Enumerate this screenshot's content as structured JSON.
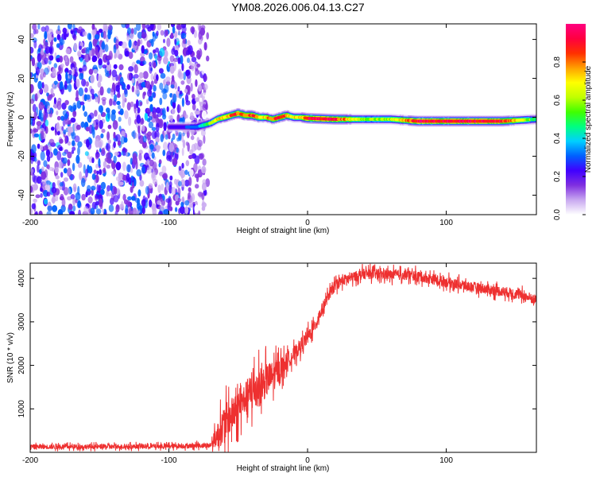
{
  "title": "YM08.2026.006.04.13.C27",
  "chart_data": [
    {
      "type": "heatmap",
      "title": "YM08.2026.006.04.13.C27",
      "xlabel": "Height of straight line (km)",
      "ylabel": "Frequency (Hz)",
      "xlim": [
        -200,
        165
      ],
      "ylim": [
        -50,
        48
      ],
      "xticks": [
        "-200",
        "-100",
        "0",
        "100"
      ],
      "xtick_values": [
        -200,
        -100,
        0,
        100
      ],
      "yticks": [
        "40",
        "20",
        "0",
        "-20",
        "-40"
      ],
      "ytick_values": [
        40,
        20,
        0,
        -20,
        -40
      ],
      "colorbar": {
        "label": "Normalized spectral amplitude",
        "range": [
          0,
          1
        ],
        "ticks": [
          "0.0",
          "0.2",
          "0.4",
          "0.6",
          "0.8"
        ],
        "tick_values": [
          0.0,
          0.2,
          0.4,
          0.6,
          0.8
        ],
        "colormap": [
          "#ffffff",
          "#c8a8f0",
          "#8030e0",
          "#4000ff",
          "#0060ff",
          "#00d0ff",
          "#00ff80",
          "#40ff00",
          "#c0ff00",
          "#ffff00",
          "#ffa000",
          "#ff3000",
          "#ff0040",
          "#ff0080"
        ]
      },
      "noise_region": {
        "x_range": [
          -200,
          -78
        ],
        "freq_range": [
          -50,
          48
        ],
        "amplitude_range": [
          0.05,
          0.35
        ]
      },
      "signal_ridge": {
        "x": [
          -100,
          -90,
          -80,
          -75,
          -70,
          -65,
          -60,
          -55,
          -50,
          -45,
          -40,
          -35,
          -30,
          -25,
          -20,
          -15,
          -10,
          -5,
          0,
          20,
          40,
          60,
          80,
          100,
          120,
          140,
          165
        ],
        "freq": [
          -5,
          -5,
          -5,
          -4,
          -3,
          -1,
          0,
          1,
          2,
          1,
          1,
          0,
          0,
          -1,
          0,
          1,
          0,
          0,
          -0.5,
          -1,
          -1,
          -1,
          -2,
          -2,
          -2,
          -2,
          -1
        ],
        "amplitude": [
          0.22,
          0.25,
          0.35,
          0.45,
          0.6,
          0.75,
          0.8,
          0.85,
          0.88,
          0.85,
          0.92,
          0.8,
          0.75,
          0.85,
          0.9,
          0.85,
          0.7,
          0.7,
          0.98,
          0.95,
          0.6,
          0.65,
          0.98,
          0.95,
          0.95,
          0.95,
          0.5
        ]
      }
    },
    {
      "type": "line",
      "xlabel": "Height of straight line (km)",
      "ylabel": "SNR (10 * v/v)",
      "xlim": [
        -200,
        165
      ],
      "ylim": [
        0,
        4350
      ],
      "xticks": [
        "-200",
        "-100",
        "0",
        "100"
      ],
      "xtick_values": [
        -200,
        -100,
        0,
        100
      ],
      "yticks": [
        "1000",
        "2000",
        "3000",
        "4000"
      ],
      "ytick_values": [
        1000,
        2000,
        3000,
        4000
      ],
      "color": "#ee3030",
      "series": [
        {
          "name": "SNR",
          "x": [
            -200,
            -150,
            -100,
            -70,
            -65,
            -60,
            -55,
            -50,
            -45,
            -40,
            -35,
            -30,
            -25,
            -20,
            -15,
            -10,
            -5,
            0,
            5,
            10,
            15,
            20,
            25,
            30,
            40,
            50,
            60,
            70,
            80,
            90,
            100,
            110,
            120,
            130,
            140,
            150,
            160,
            165
          ],
          "y": [
            130,
            130,
            140,
            160,
            400,
            650,
            850,
            1000,
            1250,
            1400,
            1500,
            1650,
            1750,
            1900,
            2100,
            2250,
            2450,
            2650,
            2900,
            3250,
            3600,
            3850,
            3950,
            4000,
            4100,
            4100,
            4080,
            4080,
            4050,
            3980,
            3920,
            3850,
            3800,
            3750,
            3700,
            3650,
            3550,
            3500
          ],
          "noise_amplitude": [
            110,
            110,
            110,
            120,
            600,
            900,
            800,
            800,
            700,
            1000,
            900,
            800,
            700,
            600,
            400,
            350,
            350,
            350,
            300,
            300,
            250,
            250,
            250,
            240,
            240,
            240,
            240,
            240,
            240,
            240,
            240,
            240,
            240,
            240,
            240,
            240,
            240,
            240
          ]
        }
      ]
    }
  ]
}
